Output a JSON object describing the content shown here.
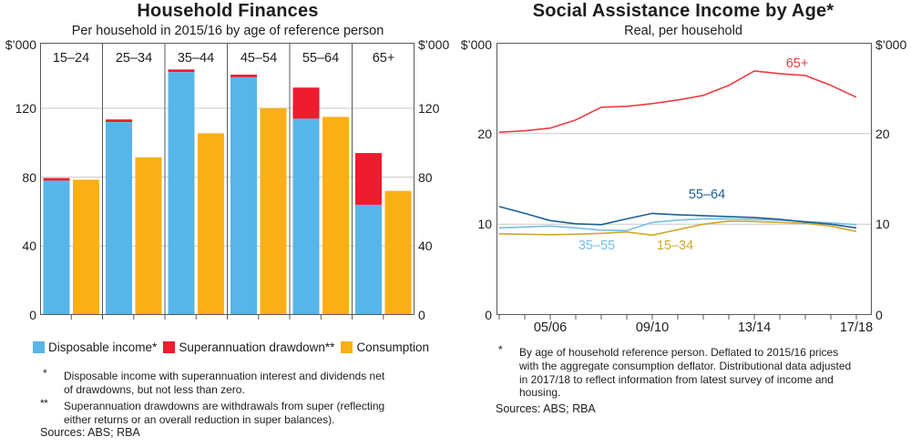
{
  "colors": {
    "text": "#1d1d1b",
    "border": "#58595b",
    "grid": "#c8c9ca"
  },
  "chart_data": [
    {
      "id": "household-finances",
      "type": "bar",
      "title": "Household Finances",
      "subtitle": "Per household in 2015/16 by age of reference person",
      "unit_left": "$’000",
      "unit_right": "$’000",
      "categories": [
        "15–24",
        "25–34",
        "35–44",
        "45–54",
        "55–64",
        "65+"
      ],
      "series": [
        {
          "name": "Disposable income*",
          "color": "#57B5E8",
          "values": [
            78,
            112,
            141,
            138,
            114,
            64
          ]
        },
        {
          "name": "Superannuation drawdown**",
          "color": "#ED1C2E",
          "values": [
            1.5,
            1.5,
            1.5,
            1.5,
            18,
            30
          ],
          "stacked_on": "Disposable income*"
        },
        {
          "name": "Consumption",
          "color": "#FBAF17",
          "values": [
            78.5,
            91.5,
            105.5,
            120,
            115,
            72
          ]
        }
      ],
      "ylim": [
        0,
        158
      ],
      "yticks": [
        0,
        40,
        80,
        120
      ],
      "grid_at": [
        40,
        80,
        120
      ]
    },
    {
      "id": "social-assistance-income",
      "type": "line",
      "title": "Social Assistance Income by Age*",
      "subtitle": "Real, per household",
      "unit_left": "$’000",
      "unit_right": "$’000",
      "x_years": [
        "03/04",
        "04/05",
        "05/06",
        "06/07",
        "07/08",
        "08/09",
        "09/10",
        "10/11",
        "11/12",
        "12/13",
        "13/14",
        "14/15",
        "15/16",
        "16/17",
        "17/18"
      ],
      "x_tick_labels": [
        {
          "label": "05/06",
          "index": 2
        },
        {
          "label": "09/10",
          "index": 6
        },
        {
          "label": "13/14",
          "index": 10
        },
        {
          "label": "17/18",
          "index": 14
        }
      ],
      "series": [
        {
          "name": "35–55",
          "color": "#74BFE8",
          "values": [
            9.6,
            9.7,
            9.8,
            9.6,
            9.35,
            9.3,
            10.2,
            10.45,
            10.6,
            10.6,
            10.55,
            10.45,
            10.3,
            10.15,
            9.95
          ]
        },
        {
          "name": "15–34",
          "color": "#D2A62C",
          "values": [
            8.95,
            8.9,
            8.85,
            8.9,
            9.0,
            9.15,
            8.8,
            9.4,
            10.0,
            10.35,
            10.3,
            10.2,
            10.1,
            9.8,
            9.2
          ]
        },
        {
          "name": "55–64",
          "color": "#1F5F94",
          "values": [
            11.95,
            11.2,
            10.4,
            10.05,
            9.95,
            10.6,
            11.2,
            11.05,
            10.95,
            10.85,
            10.75,
            10.55,
            10.25,
            10.0,
            9.6
          ]
        },
        {
          "name": "65+",
          "color": "#EE3B44",
          "values": [
            20.15,
            20.3,
            20.6,
            21.5,
            22.9,
            23.0,
            23.3,
            23.7,
            24.2,
            25.3,
            26.9,
            26.6,
            26.4,
            25.3,
            24.0
          ]
        }
      ],
      "ylim": [
        0,
        30
      ],
      "yticks": [
        0,
        10,
        20
      ],
      "grid_at": [
        10,
        20
      ]
    }
  ],
  "left_panel": {
    "footnote1_marker": "*",
    "footnote1_lines": [
      "Disposable income with superannuation interest and dividends net",
      "of drawdowns, but not less than zero."
    ],
    "footnote2_marker": "**",
    "footnote2_lines": [
      "Superannuation drawdowns are withdrawals from super (reflecting",
      "either returns or an overall reduction in super balances)."
    ],
    "sources": "Sources: ABS; RBA"
  },
  "right_panel": {
    "footnote_marker": "*",
    "footnote_lines": [
      "By age of household reference person. Deflated to 2015/16 prices",
      "with the aggregate consumption deflator. Distributional data adjusted",
      "in 2017/18 to reflect information from latest survey of income and",
      "housing."
    ],
    "sources": "Sources: ABS; RBA"
  }
}
